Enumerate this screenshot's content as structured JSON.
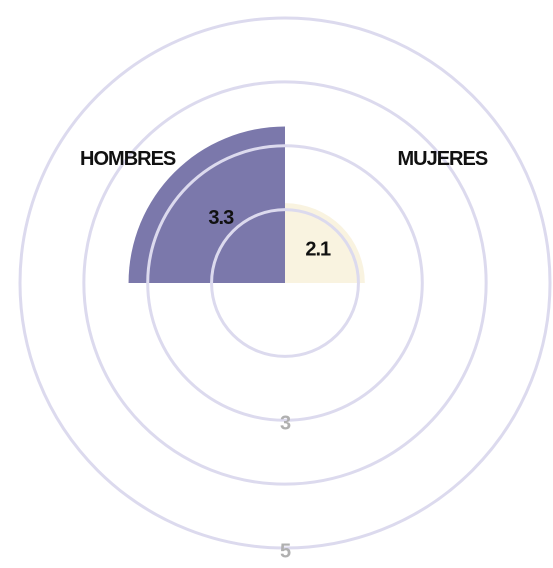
{
  "chart_data": {
    "type": "polar_area",
    "categories": [
      "HOMBRES",
      "MUJERES"
    ],
    "values": [
      3.3,
      2.1
    ],
    "colors": [
      "#7b78ab",
      "#f9f3e0"
    ],
    "rlim": [
      0.85,
      5
    ],
    "rgrid": [
      2,
      3,
      4,
      5
    ],
    "rticks": [
      3,
      5
    ]
  }
}
